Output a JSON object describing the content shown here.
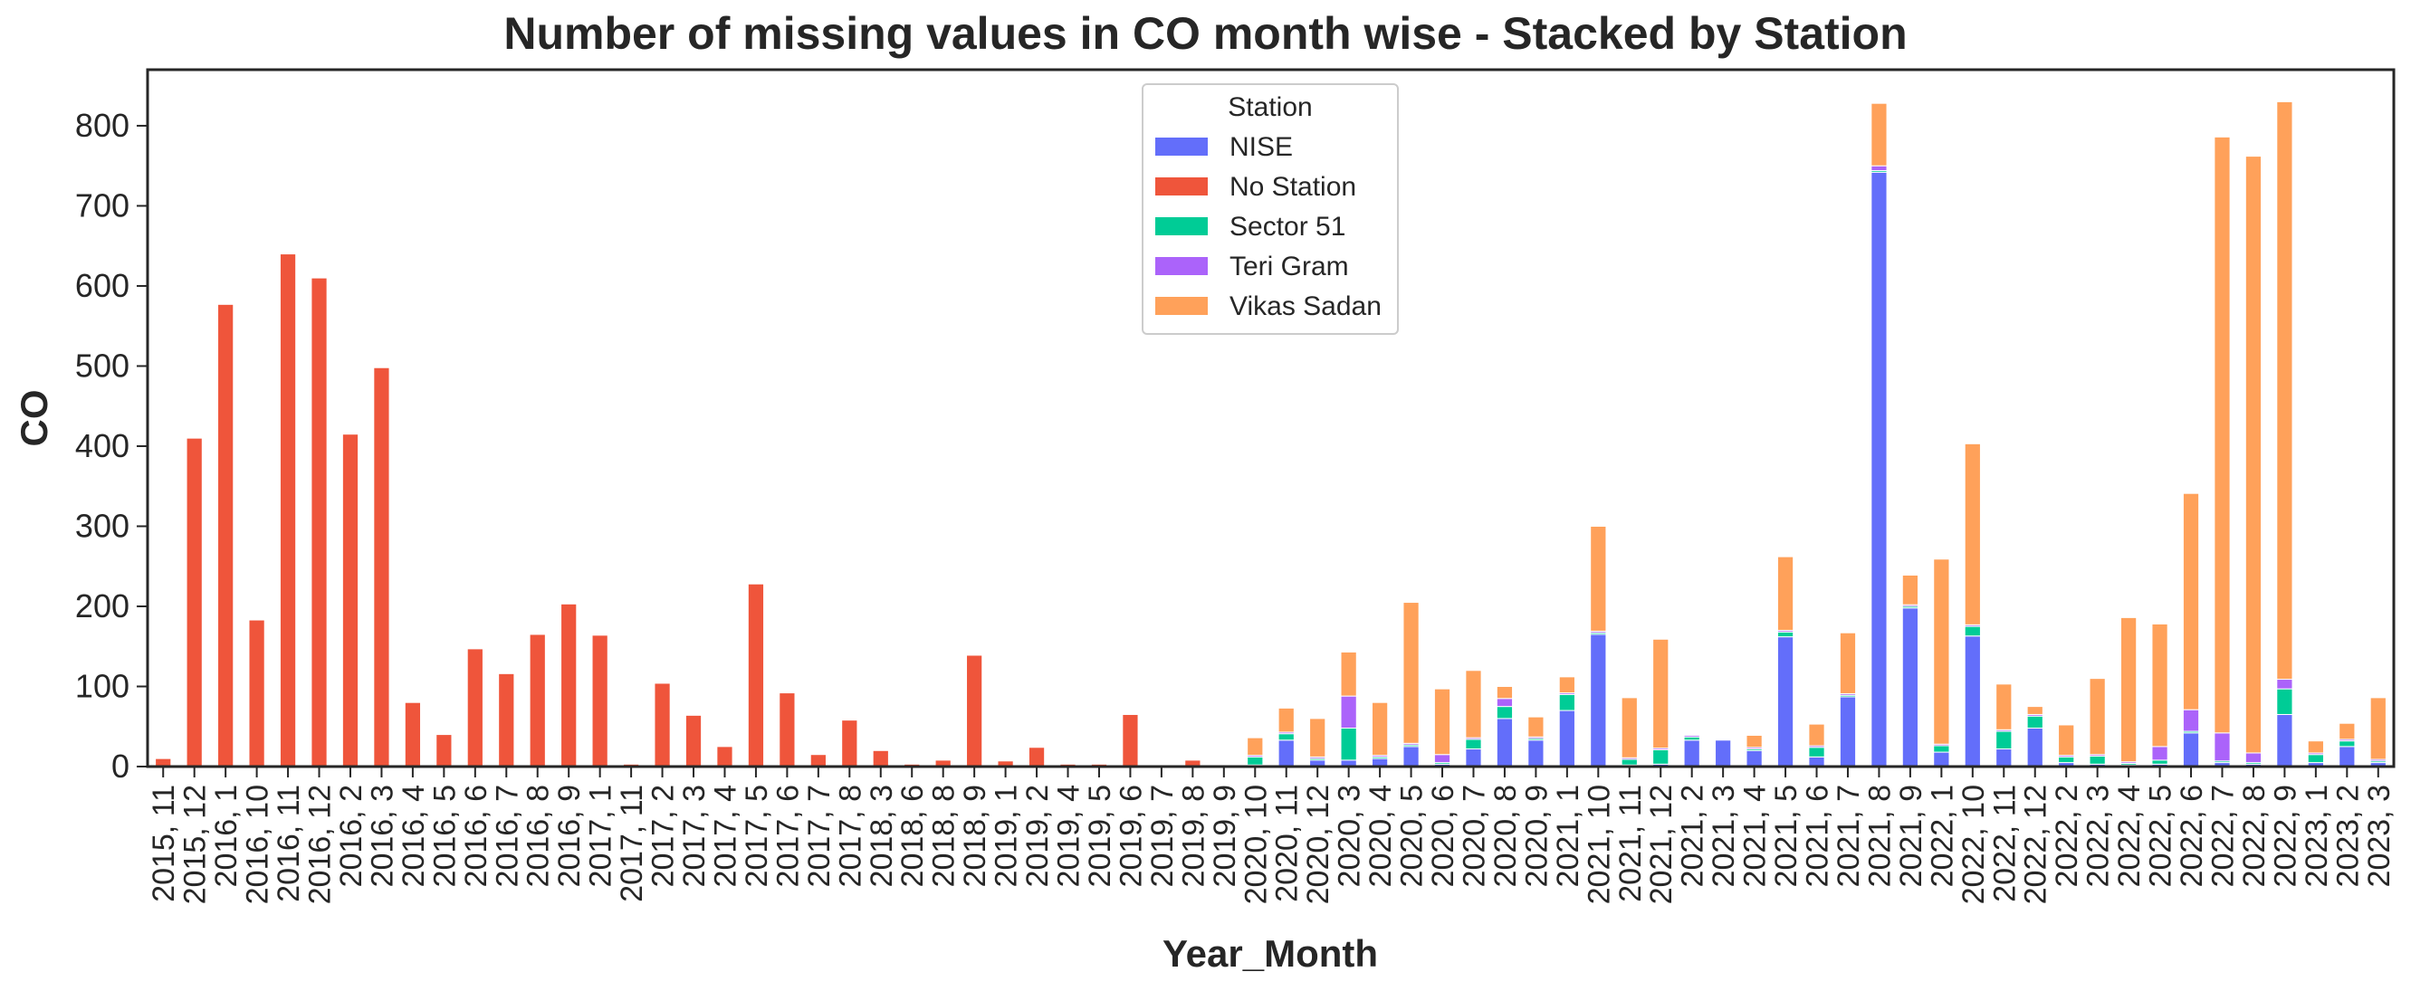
{
  "chart_data": {
    "type": "bar",
    "stacked": true,
    "title": "Number of missing values in CO month wise - Stacked by Station",
    "xlabel": "Year_Month",
    "ylabel": "CO",
    "ylim": [
      0,
      870
    ],
    "yticks": [
      0,
      100,
      200,
      300,
      400,
      500,
      600,
      700,
      800
    ],
    "legend": {
      "title": "Station",
      "placement": "top-center"
    },
    "categories": [
      "2015, 11",
      "2015, 12",
      "2016, 1",
      "2016, 10",
      "2016, 11",
      "2016, 12",
      "2016, 2",
      "2016, 3",
      "2016, 4",
      "2016, 5",
      "2016, 6",
      "2016, 7",
      "2016, 8",
      "2016, 9",
      "2017, 1",
      "2017, 11",
      "2017, 2",
      "2017, 3",
      "2017, 4",
      "2017, 5",
      "2017, 6",
      "2017, 7",
      "2017, 8",
      "2018, 3",
      "2018, 6",
      "2018, 8",
      "2018, 9",
      "2019, 1",
      "2019, 2",
      "2019, 4",
      "2019, 5",
      "2019, 6",
      "2019, 7",
      "2019, 8",
      "2019, 9",
      "2020, 10",
      "2020, 11",
      "2020, 12",
      "2020, 3",
      "2020, 4",
      "2020, 5",
      "2020, 6",
      "2020, 7",
      "2020, 8",
      "2020, 9",
      "2021, 1",
      "2021, 10",
      "2021, 11",
      "2021, 12",
      "2021, 2",
      "2021, 3",
      "2021, 4",
      "2021, 5",
      "2021, 6",
      "2021, 7",
      "2021, 8",
      "2021, 9",
      "2022, 1",
      "2022, 10",
      "2022, 11",
      "2022, 12",
      "2022, 2",
      "2022, 3",
      "2022, 4",
      "2022, 5",
      "2022, 6",
      "2022, 7",
      "2022, 8",
      "2022, 9",
      "2023, 1",
      "2023, 2",
      "2023, 3"
    ],
    "series": [
      {
        "name": "NISE",
        "color": "#636efa",
        "values": [
          0,
          0,
          0,
          0,
          0,
          0,
          0,
          0,
          0,
          0,
          0,
          0,
          0,
          0,
          0,
          0,
          0,
          0,
          0,
          0,
          0,
          0,
          0,
          0,
          0,
          0,
          0,
          0,
          0,
          0,
          0,
          0,
          0,
          0,
          0,
          2,
          33,
          8,
          8,
          10,
          25,
          3,
          22,
          60,
          33,
          70,
          165,
          2,
          3,
          33,
          33,
          20,
          162,
          12,
          87,
          742,
          198,
          18,
          163,
          22,
          48,
          5,
          3,
          2,
          3,
          42,
          5,
          3,
          65,
          5,
          25,
          5
        ]
      },
      {
        "name": "No Station",
        "color": "#ef553b",
        "values": [
          10,
          410,
          577,
          183,
          640,
          610,
          415,
          498,
          80,
          40,
          147,
          116,
          165,
          203,
          164,
          3,
          104,
          64,
          25,
          228,
          92,
          15,
          58,
          20,
          3,
          8,
          139,
          7,
          24,
          3,
          3,
          65,
          2,
          8,
          0,
          0,
          0,
          0,
          0,
          0,
          0,
          0,
          0,
          0,
          0,
          0,
          0,
          0,
          0,
          0,
          0,
          0,
          0,
          0,
          0,
          0,
          0,
          0,
          0,
          0,
          0,
          0,
          0,
          0,
          0,
          0,
          0,
          0,
          0,
          0,
          0,
          0
        ]
      },
      {
        "name": "Sector 51",
        "color": "#00cc96",
        "values": [
          0,
          0,
          0,
          0,
          0,
          0,
          0,
          0,
          0,
          0,
          0,
          0,
          0,
          0,
          0,
          0,
          0,
          0,
          0,
          0,
          0,
          0,
          0,
          0,
          0,
          0,
          0,
          0,
          0,
          0,
          0,
          0,
          0,
          0,
          0,
          10,
          8,
          2,
          40,
          2,
          2,
          2,
          12,
          15,
          2,
          20,
          2,
          7,
          18,
          4,
          0,
          2,
          6,
          12,
          2,
          2,
          2,
          8,
          12,
          22,
          15,
          7,
          10,
          2,
          5,
          2,
          2,
          2,
          32,
          10,
          7,
          2
        ]
      },
      {
        "name": "Teri Gram",
        "color": "#ab63fa",
        "values": [
          0,
          0,
          0,
          0,
          0,
          0,
          0,
          0,
          0,
          0,
          0,
          0,
          0,
          0,
          0,
          0,
          0,
          0,
          0,
          0,
          0,
          0,
          0,
          0,
          0,
          0,
          0,
          0,
          0,
          0,
          0,
          0,
          0,
          0,
          0,
          2,
          2,
          2,
          40,
          2,
          2,
          10,
          2,
          10,
          2,
          2,
          2,
          2,
          2,
          2,
          0,
          2,
          2,
          2,
          2,
          6,
          2,
          2,
          2,
          2,
          2,
          2,
          2,
          2,
          17,
          27,
          35,
          12,
          12,
          2,
          2,
          2
        ]
      },
      {
        "name": "Vikas Sadan",
        "color": "#ffa15a",
        "values": [
          0,
          0,
          0,
          0,
          0,
          0,
          0,
          0,
          0,
          0,
          0,
          0,
          0,
          0,
          0,
          0,
          0,
          0,
          0,
          0,
          0,
          0,
          0,
          0,
          0,
          0,
          0,
          0,
          0,
          0,
          0,
          0,
          0,
          0,
          0,
          22,
          30,
          48,
          55,
          66,
          176,
          82,
          84,
          15,
          25,
          20,
          131,
          75,
          136,
          0,
          0,
          15,
          92,
          27,
          76,
          78,
          37,
          231,
          226,
          57,
          10,
          38,
          95,
          180,
          153,
          270,
          744,
          745,
          721,
          15,
          20,
          77
        ]
      }
    ]
  }
}
